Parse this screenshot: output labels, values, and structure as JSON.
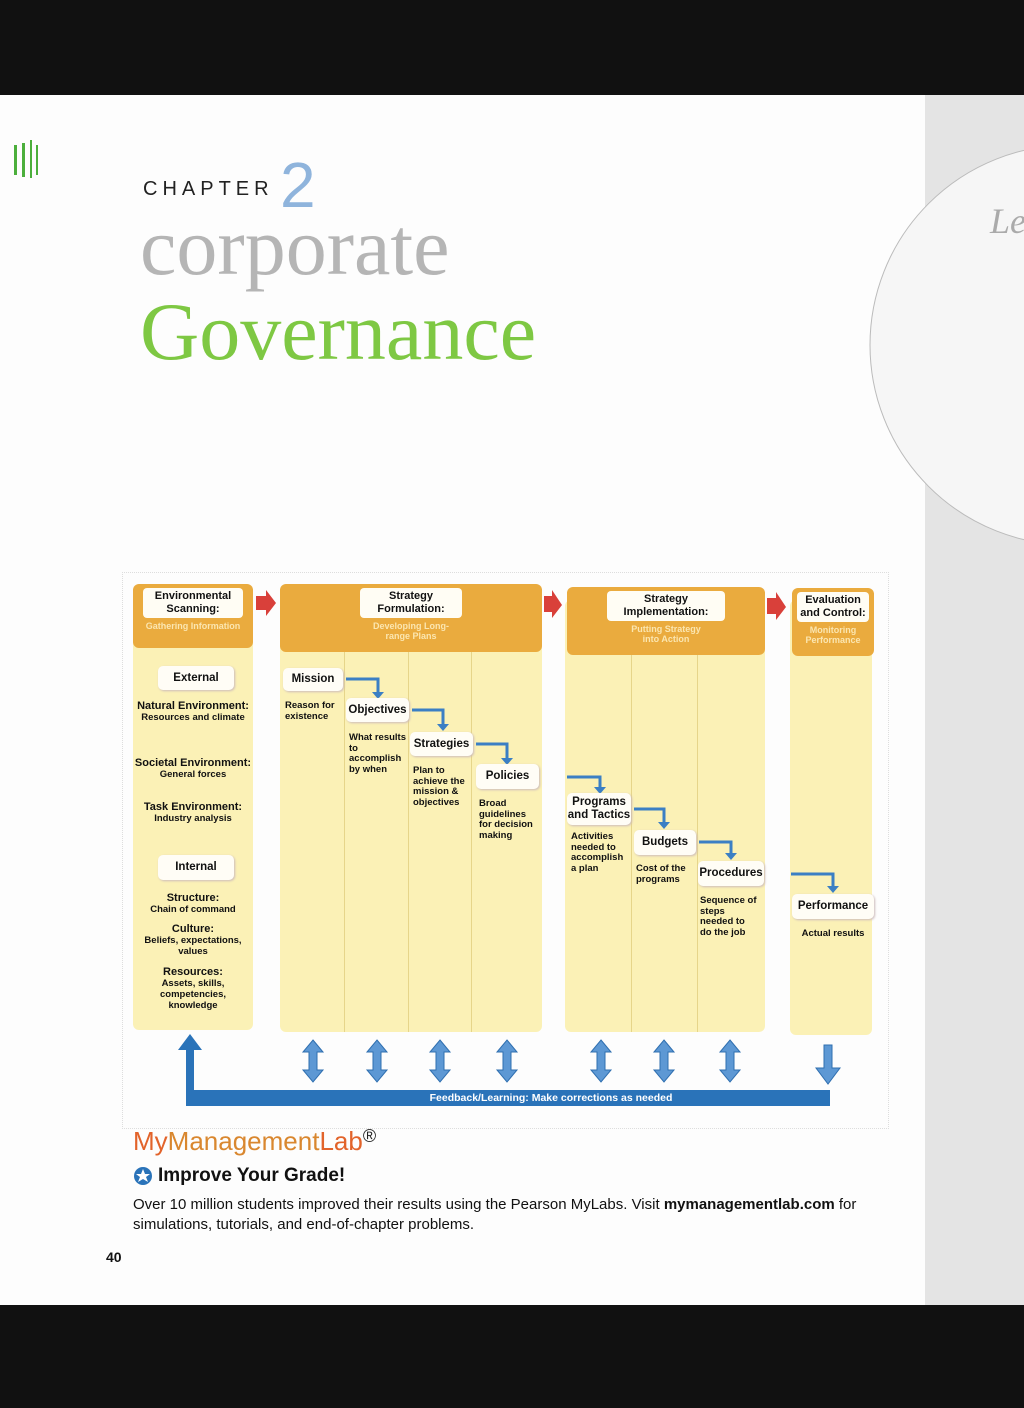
{
  "chapter": {
    "label": "CHAPTER",
    "number": "2"
  },
  "title": [
    "corporate",
    "Governance"
  ],
  "diagram": {
    "stages": [
      {
        "title": "Environmental Scanning:",
        "subtitle": "Gathering Information"
      },
      {
        "title": "Strategy Formulation:",
        "subtitle": "Developing Long-range Plans"
      },
      {
        "title": "Strategy Implementation:",
        "subtitle": "Putting Strategy into Action"
      },
      {
        "title": "Evaluation and Control:",
        "subtitle": "Monitoring Performance"
      }
    ],
    "scanning": {
      "external": {
        "heading": "External",
        "items": [
          {
            "name": "Natural Environment:",
            "detail": "Resources and climate"
          },
          {
            "name": "Societal Environment:",
            "detail": "General forces"
          },
          {
            "name": "Task Environment:",
            "detail": "Industry analysis"
          }
        ]
      },
      "internal": {
        "heading": "Internal",
        "items": [
          {
            "name": "Structure:",
            "detail": "Chain of command"
          },
          {
            "name": "Culture:",
            "detail": "Beliefs, expectations, values"
          },
          {
            "name": "Resources:",
            "detail": "Assets, skills, competencies, knowledge"
          }
        ]
      }
    },
    "formulation": [
      {
        "name": "Mission",
        "detail": "Reason for existence"
      },
      {
        "name": "Objectives",
        "detail": "What results to accomplish by when"
      },
      {
        "name": "Strategies",
        "detail": "Plan to achieve the mission & objectives"
      },
      {
        "name": "Policies",
        "detail": "Broad guidelines for decision making"
      }
    ],
    "implementation": [
      {
        "name": "Programs and Tactics",
        "detail": "Activities needed to accomplish a plan"
      },
      {
        "name": "Budgets",
        "detail": "Cost of the programs"
      },
      {
        "name": "Procedures",
        "detail": "Sequence of steps needed to do the job"
      }
    ],
    "evaluation": [
      {
        "name": "Performance",
        "detail": "Actual results"
      }
    ],
    "feedback": "Feedback/Learning: Make corrections as needed"
  },
  "promo": {
    "brand": {
      "my": "My",
      "management": "Management",
      "lab": "Lab",
      "mark": "®"
    },
    "heading": "Improve Your Grade!",
    "text_before": "Over 10 million students improved their results using the Pearson MyLabs. Visit",
    "link": "mymanagementlab.com",
    "text_after": "for simulations, tutorials, and end-of-chapter problems."
  },
  "page_number": "40",
  "next_page": "Le"
}
